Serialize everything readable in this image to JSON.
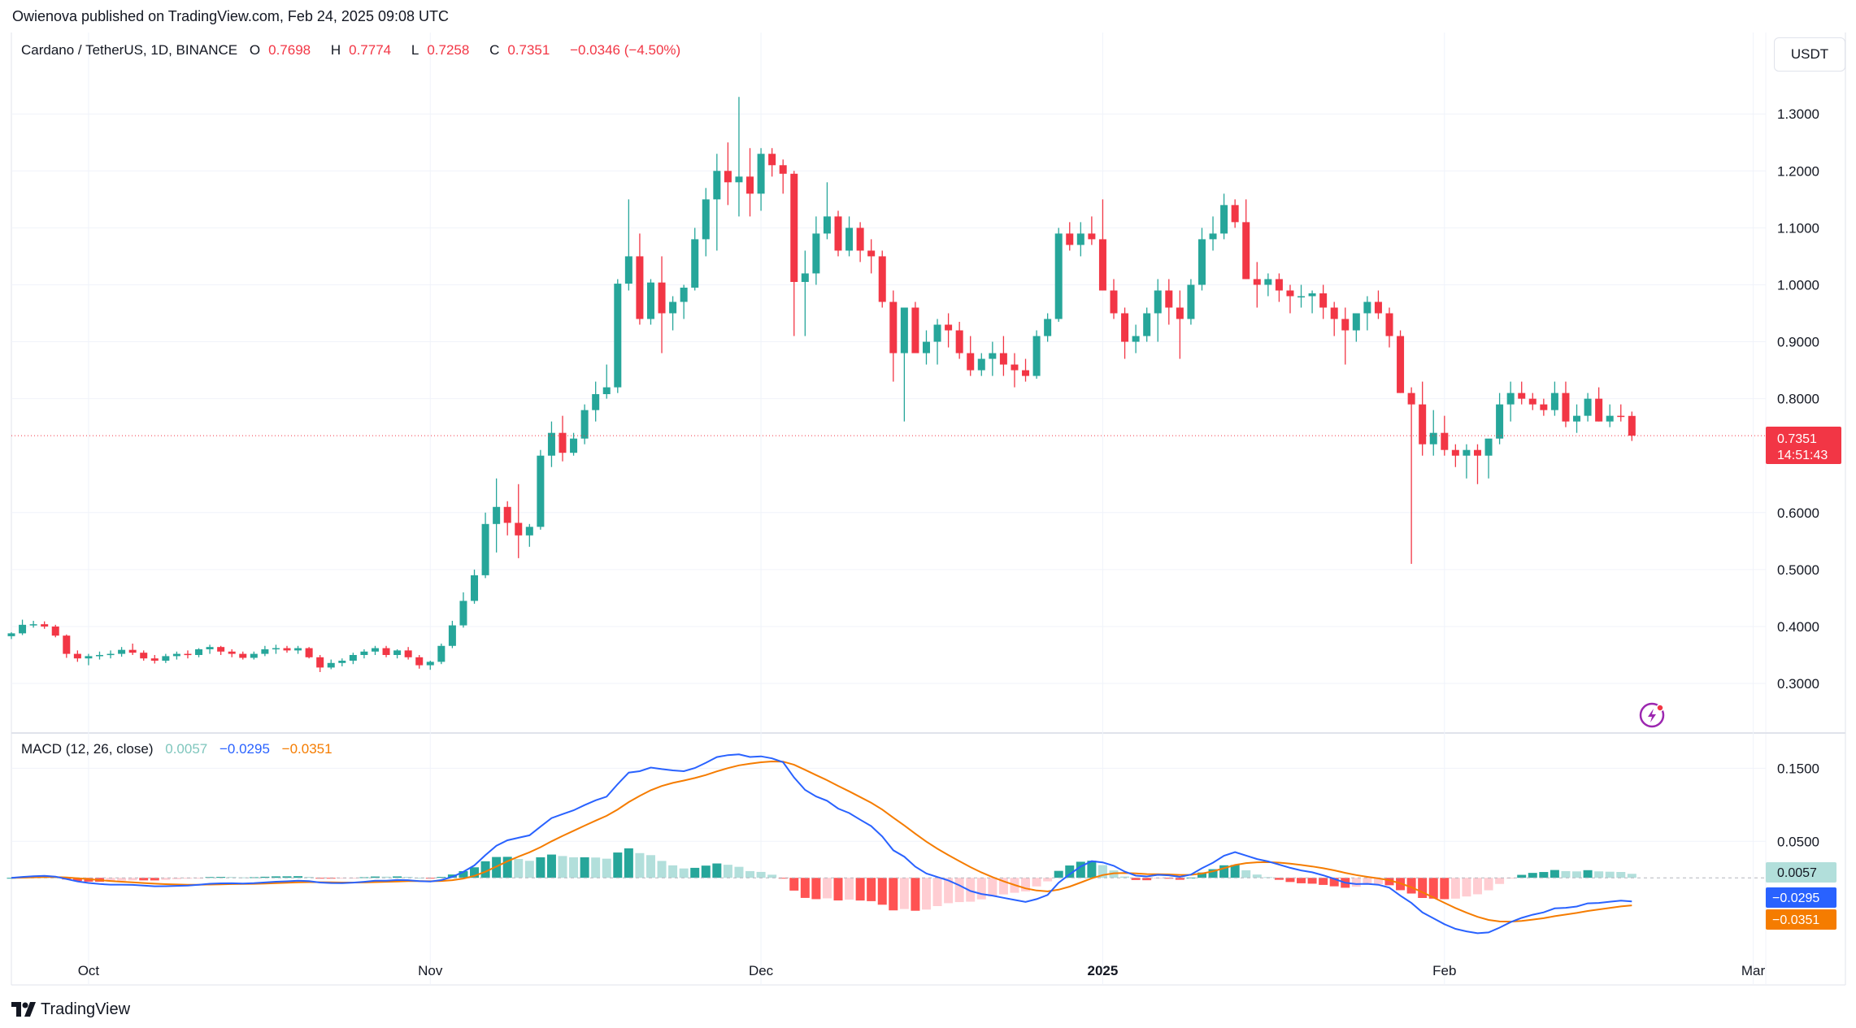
{
  "header": {
    "published": "Owienova published on TradingView.com, Feb 24, 2025 09:08 UTC",
    "quote_currency_button": "USDT"
  },
  "legend": {
    "symbol": "Cardano / TetherUS, 1D, BINANCE",
    "o_label": "O",
    "o_value": "0.7698",
    "h_label": "H",
    "h_value": "0.7774",
    "l_label": "L",
    "l_value": "0.7258",
    "c_label": "C",
    "c_value": "0.7351",
    "change": "−0.0346 (−4.50%)"
  },
  "price_badge": {
    "price": "0.7351",
    "countdown": "14:51:43"
  },
  "macd_legend": {
    "name": "MACD (12, 26, close)",
    "hist": "0.0057",
    "macd": "−0.0295",
    "signal": "−0.0351"
  },
  "macd_badges": {
    "hist": "0.0057",
    "macd": "−0.0295",
    "signal": "−0.0351"
  },
  "footer": {
    "brand": "TradingView"
  },
  "colors": {
    "up": "#26a69a",
    "down": "#f23645",
    "macd_line": "#2962ff",
    "signal_line": "#f57c00",
    "hist_up_strong": "#26a69a",
    "hist_up_weak": "#b2dfdb",
    "hist_down_strong": "#ff5252",
    "hist_down_weak": "#ffcdd2"
  },
  "icons": {
    "lightning": "lightning-icon",
    "logo": "tradingview-logo-icon"
  },
  "chart_data": [
    {
      "type": "candlestick",
      "title": "Cardano / TetherUS, 1D, BINANCE",
      "x_tick_labels": [
        "Oct",
        "Nov",
        "Dec",
        "2025",
        "Feb",
        "Mar"
      ],
      "y_tick_labels": [
        "1.3000",
        "1.2000",
        "1.1000",
        "1.0000",
        "0.9000",
        "0.8000",
        "0.6000",
        "0.5000",
        "0.4000",
        "0.3000"
      ],
      "y_ticks": [
        1.3,
        1.2,
        1.1,
        1.0,
        0.9,
        0.8,
        0.6,
        0.5,
        0.4,
        0.3
      ],
      "ylim": [
        0.213,
        1.443
      ],
      "start_date": "2024-09-24",
      "ohlc": [
        [
          0.383,
          0.39,
          0.378,
          0.388
        ],
        [
          0.388,
          0.412,
          0.385,
          0.403
        ],
        [
          0.403,
          0.41,
          0.398,
          0.404
        ],
        [
          0.404,
          0.409,
          0.396,
          0.4
        ],
        [
          0.4,
          0.403,
          0.381,
          0.384
        ],
        [
          0.384,
          0.386,
          0.345,
          0.352
        ],
        [
          0.352,
          0.358,
          0.338,
          0.344
        ],
        [
          0.344,
          0.352,
          0.332,
          0.348
        ],
        [
          0.348,
          0.356,
          0.342,
          0.35
        ],
        [
          0.35,
          0.358,
          0.344,
          0.352
        ],
        [
          0.352,
          0.364,
          0.347,
          0.359
        ],
        [
          0.359,
          0.37,
          0.35,
          0.354
        ],
        [
          0.354,
          0.358,
          0.34,
          0.344
        ],
        [
          0.344,
          0.35,
          0.335,
          0.34
        ],
        [
          0.34,
          0.352,
          0.336,
          0.348
        ],
        [
          0.348,
          0.356,
          0.342,
          0.352
        ],
        [
          0.352,
          0.358,
          0.344,
          0.35
        ],
        [
          0.35,
          0.362,
          0.346,
          0.36
        ],
        [
          0.36,
          0.368,
          0.352,
          0.364
        ],
        [
          0.364,
          0.366,
          0.35,
          0.356
        ],
        [
          0.356,
          0.36,
          0.346,
          0.352
        ],
        [
          0.352,
          0.356,
          0.342,
          0.345
        ],
        [
          0.345,
          0.356,
          0.342,
          0.352
        ],
        [
          0.352,
          0.366,
          0.348,
          0.36
        ],
        [
          0.36,
          0.368,
          0.352,
          0.362
        ],
        [
          0.362,
          0.366,
          0.354,
          0.358
        ],
        [
          0.358,
          0.366,
          0.352,
          0.362
        ],
        [
          0.362,
          0.364,
          0.344,
          0.346
        ],
        [
          0.346,
          0.35,
          0.32,
          0.328
        ],
        [
          0.328,
          0.342,
          0.325,
          0.336
        ],
        [
          0.336,
          0.344,
          0.33,
          0.34
        ],
        [
          0.34,
          0.354,
          0.334,
          0.35
        ],
        [
          0.35,
          0.36,
          0.344,
          0.356
        ],
        [
          0.356,
          0.366,
          0.35,
          0.362
        ],
        [
          0.362,
          0.366,
          0.346,
          0.35
        ],
        [
          0.35,
          0.36,
          0.344,
          0.358
        ],
        [
          0.358,
          0.364,
          0.342,
          0.346
        ],
        [
          0.346,
          0.35,
          0.326,
          0.332
        ],
        [
          0.332,
          0.34,
          0.324,
          0.338
        ],
        [
          0.338,
          0.37,
          0.334,
          0.366
        ],
        [
          0.366,
          0.41,
          0.362,
          0.402
        ],
        [
          0.402,
          0.46,
          0.398,
          0.445
        ],
        [
          0.445,
          0.5,
          0.44,
          0.49
        ],
        [
          0.49,
          0.6,
          0.485,
          0.58
        ],
        [
          0.58,
          0.66,
          0.53,
          0.61
        ],
        [
          0.61,
          0.62,
          0.56,
          0.582
        ],
        [
          0.582,
          0.65,
          0.52,
          0.56
        ],
        [
          0.56,
          0.58,
          0.54,
          0.575
        ],
        [
          0.575,
          0.71,
          0.57,
          0.7
        ],
        [
          0.7,
          0.76,
          0.68,
          0.74
        ],
        [
          0.74,
          0.77,
          0.69,
          0.705
        ],
        [
          0.705,
          0.74,
          0.7,
          0.73
        ],
        [
          0.73,
          0.79,
          0.72,
          0.78
        ],
        [
          0.78,
          0.83,
          0.76,
          0.808
        ],
        [
          0.808,
          0.86,
          0.8,
          0.82
        ],
        [
          0.82,
          1.01,
          0.81,
          1.002
        ],
        [
          1.002,
          1.15,
          0.99,
          1.05
        ],
        [
          1.05,
          1.09,
          0.93,
          0.94
        ],
        [
          0.94,
          1.01,
          0.93,
          1.004
        ],
        [
          1.004,
          1.05,
          0.88,
          0.95
        ],
        [
          0.95,
          0.98,
          0.92,
          0.97
        ],
        [
          0.97,
          1.0,
          0.94,
          0.995
        ],
        [
          0.995,
          1.1,
          0.99,
          1.08
        ],
        [
          1.08,
          1.17,
          1.05,
          1.15
        ],
        [
          1.15,
          1.23,
          1.06,
          1.2
        ],
        [
          1.2,
          1.25,
          1.14,
          1.18
        ],
        [
          1.18,
          1.33,
          1.12,
          1.19
        ],
        [
          1.19,
          1.24,
          1.12,
          1.16
        ],
        [
          1.16,
          1.24,
          1.13,
          1.23
        ],
        [
          1.23,
          1.24,
          1.19,
          1.21
        ],
        [
          1.21,
          1.22,
          1.16,
          1.195
        ],
        [
          1.195,
          1.2,
          0.91,
          1.005
        ],
        [
          1.005,
          1.06,
          0.91,
          1.02
        ],
        [
          1.02,
          1.12,
          1.0,
          1.09
        ],
        [
          1.09,
          1.18,
          1.08,
          1.12
        ],
        [
          1.12,
          1.13,
          1.05,
          1.06
        ],
        [
          1.06,
          1.12,
          1.05,
          1.1
        ],
        [
          1.1,
          1.11,
          1.04,
          1.06
        ],
        [
          1.06,
          1.08,
          1.02,
          1.05
        ],
        [
          1.05,
          1.06,
          0.96,
          0.97
        ],
        [
          0.97,
          0.99,
          0.83,
          0.88
        ],
        [
          0.88,
          0.96,
          0.76,
          0.96
        ],
        [
          0.96,
          0.97,
          0.89,
          0.88
        ],
        [
          0.88,
          0.92,
          0.86,
          0.9
        ],
        [
          0.9,
          0.94,
          0.86,
          0.93
        ],
        [
          0.93,
          0.95,
          0.89,
          0.92
        ],
        [
          0.92,
          0.935,
          0.87,
          0.88
        ],
        [
          0.88,
          0.91,
          0.84,
          0.85
        ],
        [
          0.85,
          0.88,
          0.84,
          0.87
        ],
        [
          0.87,
          0.9,
          0.84,
          0.88
        ],
        [
          0.88,
          0.91,
          0.84,
          0.86
        ],
        [
          0.86,
          0.88,
          0.82,
          0.85
        ],
        [
          0.85,
          0.87,
          0.83,
          0.84
        ],
        [
          0.84,
          0.92,
          0.835,
          0.91
        ],
        [
          0.91,
          0.95,
          0.9,
          0.94
        ],
        [
          0.94,
          1.1,
          0.935,
          1.09
        ],
        [
          1.09,
          1.11,
          1.06,
          1.07
        ],
        [
          1.07,
          1.11,
          1.05,
          1.09
        ],
        [
          1.09,
          1.12,
          1.07,
          1.08
        ],
        [
          1.08,
          1.15,
          0.99,
          0.99
        ],
        [
          0.99,
          1.01,
          0.94,
          0.95
        ],
        [
          0.95,
          0.96,
          0.87,
          0.9
        ],
        [
          0.9,
          0.93,
          0.88,
          0.91
        ],
        [
          0.91,
          0.96,
          0.9,
          0.95
        ],
        [
          0.95,
          1.01,
          0.9,
          0.99
        ],
        [
          0.99,
          1.01,
          0.93,
          0.96
        ],
        [
          0.96,
          0.99,
          0.87,
          0.94
        ],
        [
          0.94,
          1.01,
          0.93,
          1.0
        ],
        [
          1.0,
          1.1,
          0.99,
          1.08
        ],
        [
          1.08,
          1.12,
          1.06,
          1.09
        ],
        [
          1.09,
          1.16,
          1.08,
          1.14
        ],
        [
          1.14,
          1.15,
          1.1,
          1.11
        ],
        [
          1.11,
          1.15,
          1.01,
          1.01
        ],
        [
          1.01,
          1.04,
          0.96,
          1.0
        ],
        [
          1.0,
          1.02,
          0.98,
          1.01
        ],
        [
          1.01,
          1.02,
          0.97,
          0.99
        ],
        [
          0.99,
          1.0,
          0.95,
          0.98
        ],
        [
          0.98,
          1.0,
          0.96,
          0.98
        ],
        [
          0.98,
          0.99,
          0.95,
          0.985
        ],
        [
          0.985,
          1.0,
          0.94,
          0.96
        ],
        [
          0.96,
          0.97,
          0.91,
          0.94
        ],
        [
          0.94,
          0.96,
          0.86,
          0.92
        ],
        [
          0.92,
          0.95,
          0.9,
          0.95
        ],
        [
          0.95,
          0.98,
          0.92,
          0.97
        ],
        [
          0.97,
          0.99,
          0.94,
          0.95
        ],
        [
          0.95,
          0.96,
          0.89,
          0.91
        ],
        [
          0.91,
          0.92,
          0.81,
          0.81
        ],
        [
          0.81,
          0.82,
          0.51,
          0.79
        ],
        [
          0.79,
          0.83,
          0.7,
          0.72
        ],
        [
          0.72,
          0.78,
          0.7,
          0.74
        ],
        [
          0.74,
          0.77,
          0.7,
          0.71
        ],
        [
          0.71,
          0.72,
          0.68,
          0.7
        ],
        [
          0.7,
          0.72,
          0.66,
          0.71
        ],
        [
          0.71,
          0.72,
          0.65,
          0.7
        ],
        [
          0.7,
          0.72,
          0.66,
          0.73
        ],
        [
          0.73,
          0.81,
          0.72,
          0.79
        ],
        [
          0.79,
          0.83,
          0.76,
          0.81
        ],
        [
          0.81,
          0.83,
          0.79,
          0.8
        ],
        [
          0.8,
          0.81,
          0.78,
          0.79
        ],
        [
          0.79,
          0.8,
          0.77,
          0.78
        ],
        [
          0.78,
          0.83,
          0.77,
          0.81
        ],
        [
          0.81,
          0.83,
          0.75,
          0.76
        ],
        [
          0.76,
          0.79,
          0.74,
          0.77
        ],
        [
          0.77,
          0.81,
          0.76,
          0.8
        ],
        [
          0.8,
          0.82,
          0.76,
          0.76
        ],
        [
          0.76,
          0.79,
          0.75,
          0.77
        ],
        [
          0.77,
          0.79,
          0.76,
          0.7698
        ],
        [
          0.7698,
          0.7774,
          0.7258,
          0.7351
        ]
      ]
    },
    {
      "type": "macd",
      "title": "MACD (12, 26, close)",
      "y_tick_labels": [
        "0.1500",
        "0.0500"
      ],
      "y_ticks": [
        0.15,
        0.05
      ],
      "ylim": [
        -0.111,
        0.196
      ],
      "latest": {
        "hist": 0.0057,
        "macd": -0.0295,
        "signal": -0.0351
      }
    }
  ]
}
